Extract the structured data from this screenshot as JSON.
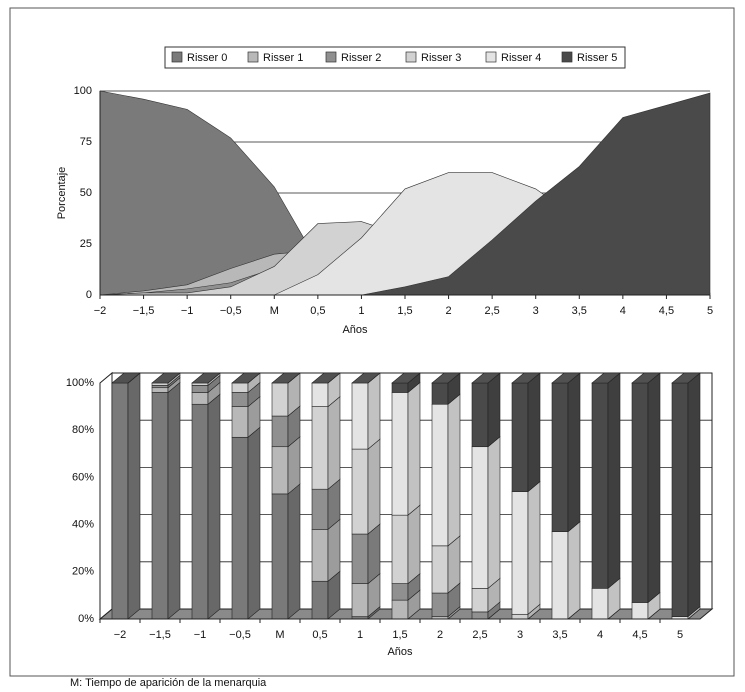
{
  "chart_data": [
    {
      "type": "area",
      "x_label": "Años",
      "y_label": "Porcentaje",
      "categories": [
        "−2",
        "−1,5",
        "−1",
        "−0,5",
        "M",
        "0,5",
        "1",
        "1,5",
        "2",
        "2,5",
        "3",
        "3,5",
        "4",
        "4,5",
        "5"
      ],
      "ylim": [
        0,
        100
      ],
      "yticks": [
        0,
        25,
        50,
        75,
        100
      ],
      "grid": true,
      "series": [
        {
          "name": "Risser 0",
          "color": "#7a7a7a",
          "values": [
            100,
            96,
            91,
            77,
            53,
            16,
            1,
            0,
            0,
            0,
            0,
            0,
            0,
            0,
            0
          ]
        },
        {
          "name": "Risser 1",
          "color": "#b8b8b8",
          "values": [
            0,
            2,
            5,
            13,
            20,
            22,
            14,
            8,
            1,
            0,
            0,
            0,
            0,
            0,
            0
          ]
        },
        {
          "name": "Risser 2",
          "color": "#909090",
          "values": [
            0,
            1,
            3,
            6,
            13,
            17,
            21,
            7,
            10,
            3,
            0,
            0,
            0,
            0,
            0
          ]
        },
        {
          "name": "Risser 3",
          "color": "#d2d2d2",
          "values": [
            0,
            1,
            1,
            4,
            14,
            35,
            36,
            29,
            20,
            10,
            2,
            0,
            0,
            0,
            0
          ]
        },
        {
          "name": "Risser 4",
          "color": "#e4e4e4",
          "values": [
            0,
            0,
            0,
            0,
            0,
            10,
            28,
            52,
            60,
            60,
            52,
            37,
            13,
            7,
            1
          ]
        },
        {
          "name": "Risser 5",
          "color": "#4a4a4a",
          "values": [
            0,
            0,
            0,
            0,
            0,
            0,
            0,
            4,
            9,
            27,
            46,
            63,
            87,
            93,
            99
          ]
        }
      ]
    },
    {
      "type": "stacked_bar_3d",
      "x_label": "Años",
      "categories": [
        "−2",
        "−1,5",
        "−1",
        "−0,5",
        "M",
        "0,5",
        "1",
        "1,5",
        "2",
        "2,5",
        "3",
        "3,5",
        "4",
        "4,5",
        "5"
      ],
      "ylim": [
        0,
        100
      ],
      "yticks": [
        {
          "value": 0,
          "label": "0%"
        },
        {
          "value": 20,
          "label": "20%"
        },
        {
          "value": 40,
          "label": "40%"
        },
        {
          "value": 60,
          "label": "60%"
        },
        {
          "value": 80,
          "label": "80%"
        },
        {
          "value": 100,
          "label": "100%"
        }
      ],
      "grid": true,
      "series": [
        {
          "name": "Risser 0",
          "color": "#7a7a7a",
          "values": [
            100,
            96,
            91,
            77,
            53,
            16,
            1,
            0,
            0,
            0,
            0,
            0,
            0,
            0,
            0
          ]
        },
        {
          "name": "Risser 1",
          "color": "#b8b8b8",
          "values": [
            0,
            2,
            5,
            13,
            20,
            22,
            14,
            8,
            1,
            0,
            0,
            0,
            0,
            0,
            0
          ]
        },
        {
          "name": "Risser 2",
          "color": "#909090",
          "values": [
            0,
            1,
            3,
            6,
            13,
            17,
            21,
            7,
            10,
            3,
            0,
            0,
            0,
            0,
            0
          ]
        },
        {
          "name": "Risser 3",
          "color": "#d2d2d2",
          "values": [
            0,
            1,
            1,
            4,
            14,
            35,
            36,
            29,
            20,
            10,
            2,
            0,
            0,
            0,
            0
          ]
        },
        {
          "name": "Risser 4",
          "color": "#e4e4e4",
          "values": [
            0,
            0,
            0,
            0,
            0,
            10,
            28,
            52,
            60,
            60,
            52,
            37,
            13,
            7,
            1
          ]
        },
        {
          "name": "Risser 5",
          "color": "#4a4a4a",
          "values": [
            0,
            0,
            0,
            0,
            0,
            0,
            0,
            4,
            9,
            27,
            46,
            63,
            87,
            93,
            99
          ]
        }
      ]
    }
  ],
  "footnote": "M: Tiempo de aparición de la menarquia"
}
